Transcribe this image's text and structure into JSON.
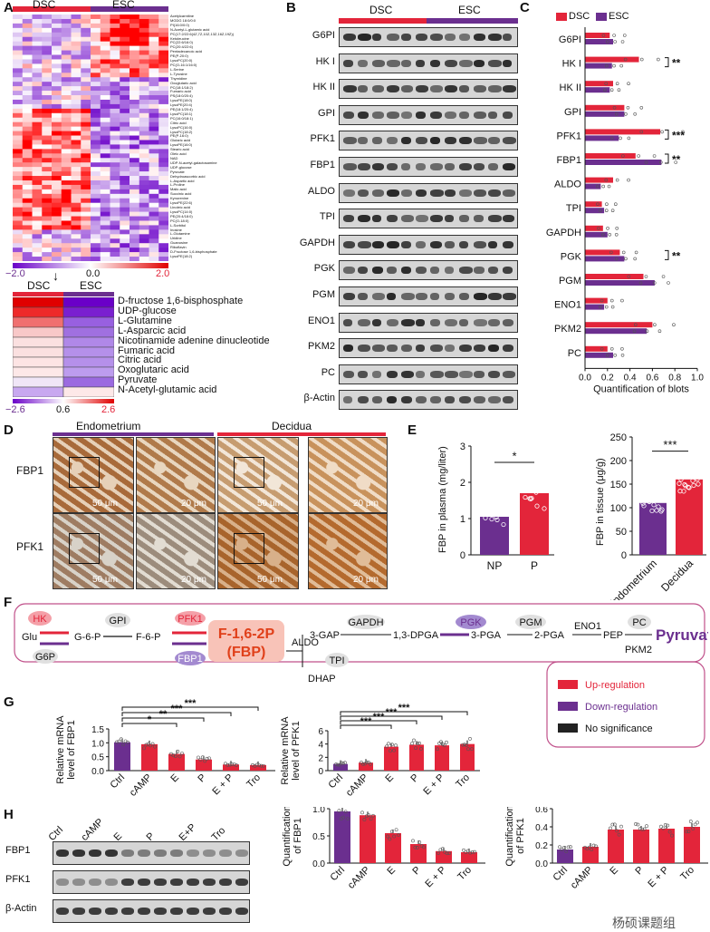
{
  "panels": {
    "a": "A",
    "b": "B",
    "c": "C",
    "d": "D",
    "e": "E",
    "f": "F",
    "g": "G",
    "h": "H"
  },
  "groups": {
    "dsc": "DSC",
    "esc": "ESC"
  },
  "colors": {
    "red": "#e3253a",
    "purple": "#6b2f8f",
    "black": "#222222",
    "grey": "#e0e0e0"
  },
  "panel_a": {
    "scale_min": "−2.0",
    "scale_mid": "0.0",
    "scale_max": "2.0",
    "metabolites": [
      "Acetylcarnitine",
      "MGDG 18:0/0:0",
      "PI(16:0/0:0)",
      "N-Acetyl-L-glutamic acid",
      "PC(17:2/22:6(4Z,7Z,10Z,13Z,16Z,19Z))",
      "Ketoleucine",
      "PC(22:6/16:0)",
      "PC(20:4/22:6)",
      "Pentadecanoic acid",
      "PE(P-20:0)",
      "LysoPC(20:0)",
      "PC(O-16:1/16:0)",
      "L-Serine",
      "L-Tyrosine",
      "Thymidine",
      "Oxoglutaric acid",
      "PC(18:1/18:2)",
      "Fumaric acid",
      "PS(18:0/20:4)",
      "LysoPE(18:0)",
      "LysoPE(20:4)",
      "PE(18:1/20:4)",
      "LysoPC(18:1)",
      "PC(16:0/18:1)",
      "Citric acid",
      "LysoPC(16:0)",
      "LysoPC(18:2)",
      "PE(P-16:0)",
      "Glutaric acid",
      "LysoPE(16:0)",
      "Stearic acid",
      "Oleic acid",
      "NAD",
      "UDP-N-acetyl-galactosamine",
      "UDP-glucose",
      "Pyruvate",
      "Dehydroascorbic acid",
      "L-Aspartic acid",
      "L-Proline",
      "Malic acid",
      "Succinic acid",
      "Kynurenine",
      "LysoPE(22:6)",
      "Linoleic acid",
      "LysoPC(14:0)",
      "PE(20:4/18:0)",
      "PC(O-18:0)",
      "L-Sorbitol",
      "Inosine",
      "L-Glutamine",
      "Uridine",
      "Guanosine",
      "Riboflavin",
      "D-Fructose 1,6-bisphosphate",
      "LysoPE(18:2)"
    ]
  },
  "panel_a2": {
    "rows": [
      "D-fructose 1,6-bisphosphate",
      "UDP-glucose",
      "L-Glutamine",
      "L-Asparcic acid",
      "Nicotinamide adenine dinucleotide",
      "Fumaric acid",
      "Citric acid",
      "Oxoglutaric acid",
      "Pyruvate",
      "N-Acetyl-glutamic acid"
    ],
    "scale_min": "−2.6",
    "scale_mid": "0.6",
    "scale_max": "2.6"
  },
  "panel_b": {
    "proteins": [
      "G6PI",
      "HK I",
      "HK II",
      "GPI",
      "PFK1",
      "FBP1",
      "ALDO",
      "TPI",
      "GAPDH",
      "PGK",
      "PGM",
      "ENO1",
      "PKM2",
      "PC",
      "β-Actin"
    ]
  },
  "panel_c": {
    "xlabel": "Quantification of blots",
    "ticks": [
      "0.0",
      "0.2",
      "0.4",
      "0.6",
      "0.8",
      "1.0"
    ],
    "proteins": [
      "G6PI",
      "HK I",
      "HK II",
      "GPI",
      "PFK1",
      "FBP1",
      "ALDO",
      "TPI",
      "GAPDH",
      "PGK",
      "PGM",
      "ENO1",
      "PKM2",
      "PC"
    ],
    "dsc": [
      0.22,
      0.48,
      0.25,
      0.35,
      0.67,
      0.45,
      0.25,
      0.15,
      0.16,
      0.31,
      0.52,
      0.2,
      0.6,
      0.2
    ],
    "esc": [
      0.25,
      0.24,
      0.22,
      0.35,
      0.3,
      0.68,
      0.14,
      0.17,
      0.2,
      0.35,
      0.62,
      0.17,
      0.55,
      0.25
    ],
    "stars": [
      {
        "row": "HK I",
        "text": "**"
      },
      {
        "row": "PFK1",
        "text": "***"
      },
      {
        "row": "FBP1",
        "text": "**"
      },
      {
        "row": "PGK",
        "text": "**"
      }
    ]
  },
  "panel_d": {
    "col1": "Endometrium",
    "col2": "Decidua",
    "rows": [
      "FBP1",
      "PFK1"
    ],
    "scale_50": "50 μm",
    "scale_20": "20 μm"
  },
  "panel_e": {
    "left": {
      "ylabel": "FBP in plasma (mg/liter)",
      "cats": [
        "NP",
        "P"
      ],
      "values": [
        1.05,
        1.7
      ],
      "ticks": [
        "0",
        "1",
        "2",
        "3"
      ],
      "sig": "*"
    },
    "right": {
      "ylabel": "FBP in tissue (μg/g)",
      "cats": [
        "Endometrium",
        "Decidua"
      ],
      "values": [
        110,
        160
      ],
      "ticks": [
        "0",
        "50",
        "100",
        "150",
        "200",
        "250"
      ],
      "sig": "***"
    }
  },
  "panel_f": {
    "nodes": {
      "hk": "HK",
      "glu": "Glu",
      "g6p_enz": "G6P",
      "g6p": "G-6-P",
      "gpi": "GPI",
      "f6p": "F-6-P",
      "pfk1": "PFK1",
      "fbp1": "FBP1",
      "f16": "F-1,6-2P",
      "fbp": "(FBP)",
      "aldo": "ALDO",
      "gap3": "3-GAP",
      "dhap": "DHAP",
      "tpi": "TPI",
      "gapdh": "GAPDH",
      "dpga": "1,3-DPGA",
      "pgk": "PGK",
      "pga3": "3-PGA",
      "pgm": "PGM",
      "pga2": "2-PGA",
      "eno1": "ENO1",
      "pep": "PEP",
      "pc": "PC",
      "pkm2": "PKM2",
      "pyruvate": "Pyruvate"
    },
    "legend": [
      "Up-regulation",
      "Down-regulation",
      "No significance"
    ]
  },
  "panel_g": {
    "cats": [
      "Ctrl",
      "cAMP",
      "E",
      "P",
      "E + P",
      "Tro"
    ],
    "fbp1": {
      "ylabel1": "Relative mRNA",
      "ylabel2": "level of FBP1",
      "values": [
        1.02,
        0.95,
        0.6,
        0.4,
        0.22,
        0.2
      ],
      "ticks": [
        "0.0",
        "0.5",
        "1.0",
        "1.5"
      ],
      "sig": [
        "*",
        "**",
        "***",
        "***"
      ]
    },
    "pfk1": {
      "ylabel1": "Relative mRNA",
      "ylabel2": "level of PFK1",
      "values": [
        1.0,
        1.2,
        3.6,
        3.9,
        3.8,
        4.0
      ],
      "ticks": [
        "0",
        "2",
        "4",
        "6"
      ],
      "sig": [
        "***",
        "***",
        "***",
        "***"
      ]
    }
  },
  "panel_h": {
    "lanes": [
      "Ctrl",
      "cAMP",
      "E",
      "P",
      "E+P",
      "Tro"
    ],
    "blots": [
      "FBP1",
      "PFK1",
      "β-Actin"
    ],
    "fbp1": {
      "ylabel1": "Quantification",
      "ylabel2": "of FBP1",
      "cats": [
        "Ctrl",
        "cAMP",
        "E",
        "P",
        "E + P",
        "Tro"
      ],
      "values": [
        0.95,
        0.88,
        0.55,
        0.35,
        0.22,
        0.2
      ],
      "ticks": [
        "0.0",
        "0.5",
        "1.0"
      ],
      "sig": [
        "**",
        "***",
        "****",
        "****"
      ]
    },
    "pfk1": {
      "ylabel1": "Quantification",
      "ylabel2": "of PFK1",
      "cats": [
        "Ctrl",
        "cAMP",
        "E",
        "P",
        "E + P",
        "Tro"
      ],
      "values": [
        0.15,
        0.18,
        0.37,
        0.37,
        0.38,
        0.4
      ],
      "ticks": [
        "0.0",
        "0.2",
        "0.4",
        "0.6"
      ],
      "sig": [
        "**",
        "**",
        "**",
        "**"
      ]
    }
  },
  "watermark": "杨硕课题组"
}
